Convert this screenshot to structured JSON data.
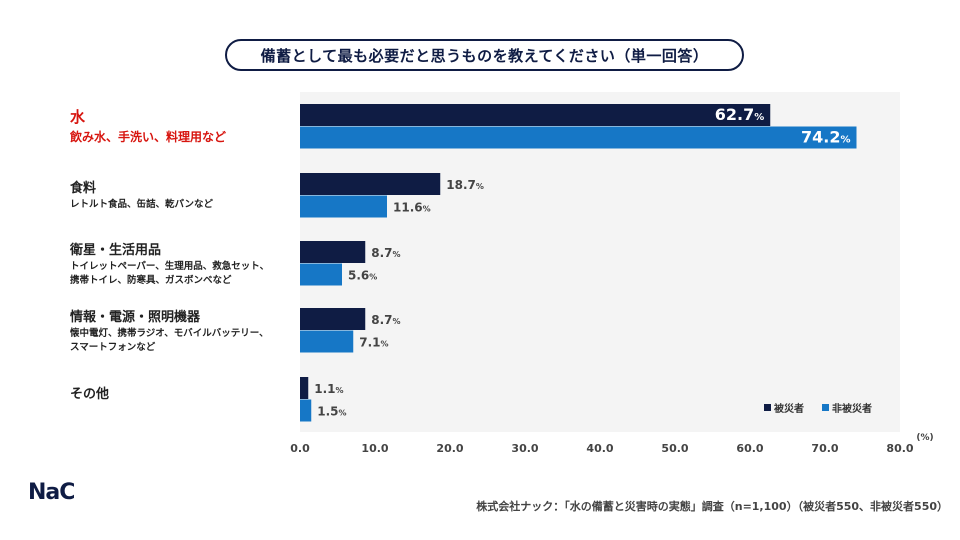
{
  "title": "備蓄として最も必要だと思うものを教えてください（単一回答）",
  "chart_data": {
    "type": "bar",
    "orientation": "horizontal",
    "categories": [
      {
        "name": "水",
        "sub": "飲み水、手洗い、料理用など",
        "highlight": true
      },
      {
        "name": "食料",
        "sub": "レトルト食品、缶詰、乾パンなど",
        "highlight": false
      },
      {
        "name": "衛星・生活用品",
        "sub": "トイレットペーパー、生理用品、救急セット、\n携帯トイレ、防寒具、ガスボンベなど",
        "highlight": false
      },
      {
        "name": "情報・電源・照明機器",
        "sub": "懐中電灯、携帯ラジオ、モバイルバッテリー、\nスマートフォンなど",
        "highlight": false
      },
      {
        "name": "その他",
        "sub": "",
        "highlight": false
      }
    ],
    "series": [
      {
        "name": "被災者",
        "color": "#0f1c44",
        "values": [
          62.7,
          18.7,
          8.7,
          8.7,
          1.1
        ]
      },
      {
        "name": "非被災者",
        "color": "#1677c6",
        "values": [
          74.2,
          11.6,
          5.6,
          7.1,
          1.5
        ]
      }
    ],
    "value_unit": "%",
    "xlim": [
      0,
      80
    ],
    "xticks": [
      "0.0",
      "10.0",
      "20.0",
      "30.0",
      "40.0",
      "50.0",
      "60.0",
      "70.0",
      "80.0"
    ],
    "xunit_label": "(%)",
    "legend_position": "bottom-right",
    "grid": false
  },
  "logo_text": "NaC",
  "source": "株式会社ナック：「水の備蓄と災害時の実態」調査（n=1,100）（被災者550、非被災者550）"
}
